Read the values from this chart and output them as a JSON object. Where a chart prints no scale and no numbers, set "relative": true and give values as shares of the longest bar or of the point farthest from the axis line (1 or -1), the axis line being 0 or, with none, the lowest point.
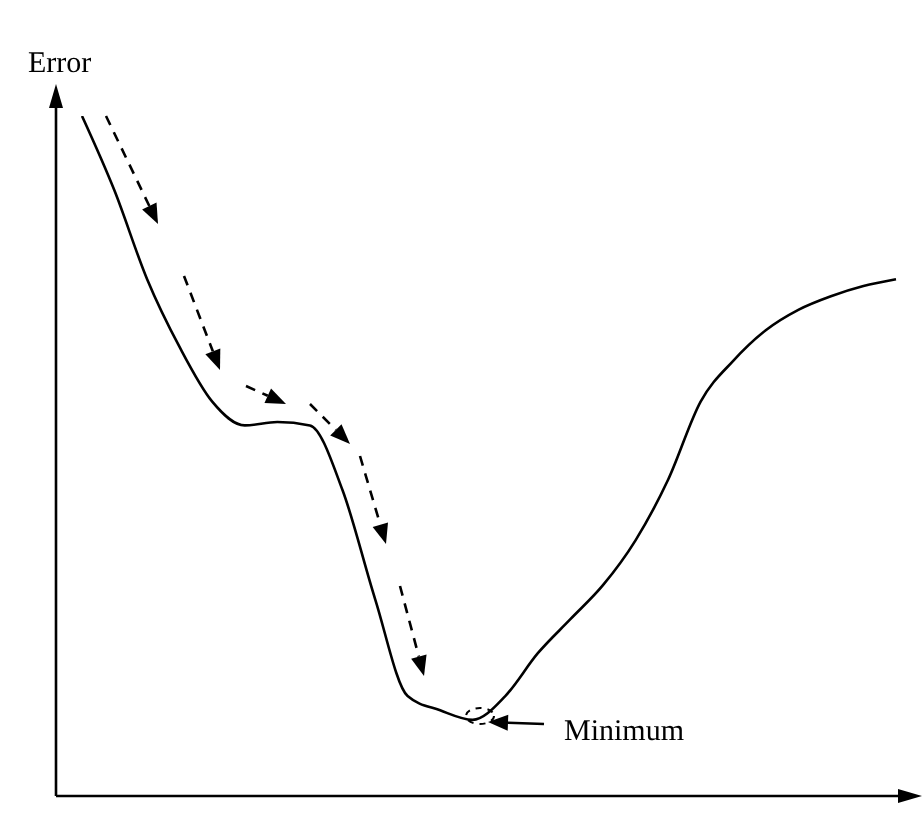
{
  "chart_data": {
    "type": "line",
    "ylabel": "Error",
    "relative": true,
    "categories": [
      null,
      null,
      null,
      null,
      null,
      null,
      null,
      null,
      null,
      null,
      null,
      null,
      null,
      null,
      null,
      null,
      null,
      null,
      null,
      null,
      null,
      null,
      null,
      null,
      null,
      null
    ],
    "series": [
      {
        "color": "#000000",
        "values": [
          1.0,
          0.89,
          0.76,
          0.66,
          0.58,
          0.545,
          0.55,
          0.545,
          0.45,
          0.29,
          0.147,
          0.126,
          0.112,
          0.147,
          0.21,
          0.26,
          0.31,
          0.376,
          0.465,
          0.58,
          0.64,
          0.685,
          0.715,
          0.735,
          0.75,
          0.76
        ]
      }
    ],
    "annotations": [
      "Minimum"
    ]
  }
}
